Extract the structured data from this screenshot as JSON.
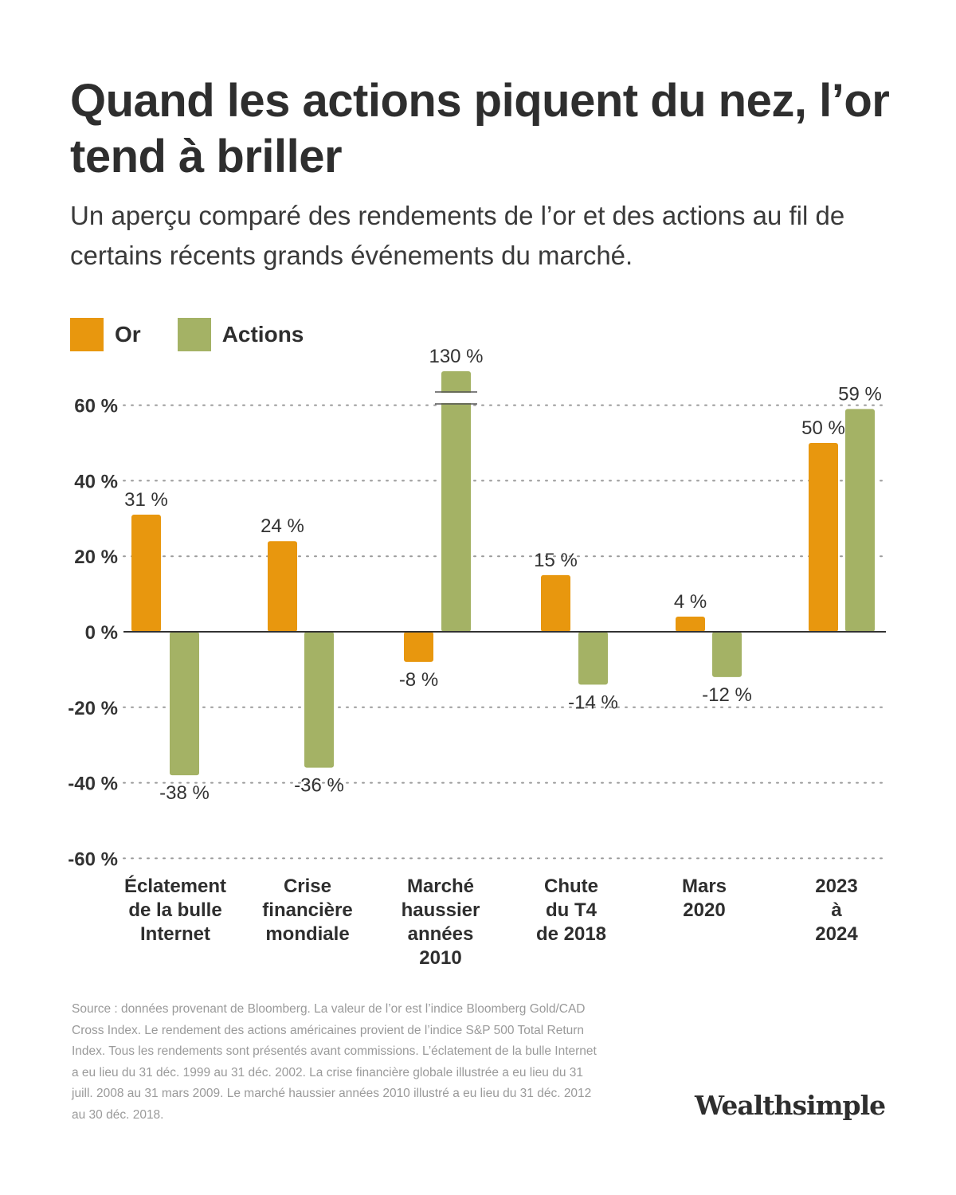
{
  "title": "Quand les actions piquent du nez, l’or tend à briller",
  "subtitle": "Un aperçu comparé des rendements de l’or et des actions au fil de certains récents grands événements du marché.",
  "legend": [
    {
      "label": "Or",
      "color": "#E8970E"
    },
    {
      "label": "Actions",
      "color": "#A4B265"
    }
  ],
  "chart_data": {
    "type": "bar",
    "categories": [
      "Éclatement de la bulle Internet",
      "Crise financière mondiale",
      "Marché haussier années 2010",
      "Chute du T4 de 2018",
      "Mars 2020",
      "2023 à 2024"
    ],
    "category_lines": [
      [
        "Éclatement",
        "de la bulle",
        "Internet"
      ],
      [
        "Crise",
        "financière",
        "mondiale"
      ],
      [
        "Marché",
        "haussier",
        "années",
        "2010"
      ],
      [
        "Chute",
        "du T4",
        "de 2018"
      ],
      [
        "Mars",
        "2020"
      ],
      [
        "2023",
        "à",
        "2024"
      ]
    ],
    "series": [
      {
        "name": "Or",
        "color": "#E8970E",
        "values": [
          31,
          24,
          -8,
          15,
          4,
          50
        ],
        "labels": [
          "31 %",
          "24 %",
          "-8 %",
          "15 %",
          "4 %",
          "50 %"
        ]
      },
      {
        "name": "Actions",
        "color": "#A4B265",
        "values": [
          -38,
          -36,
          130,
          -14,
          -12,
          59
        ],
        "labels": [
          "-38 %",
          "-36 %",
          "130 %",
          "-14 %",
          "-12 %",
          "59 %"
        ]
      }
    ],
    "ylim": [
      -60,
      60
    ],
    "yticks": [
      60,
      40,
      20,
      0,
      -20,
      -40,
      -60
    ],
    "ytick_labels": [
      "60 %",
      "40 %",
      "20 %",
      "0 %",
      "-20 %",
      "-40 %",
      "-60 %"
    ],
    "grid": "dotted horizontal",
    "axis_break": "Marché haussier années 2010 — Actions",
    "legend_position": "top-left"
  },
  "footnote": "Source : données provenant de Bloomberg. La valeur de l’or est l’indice Bloomberg Gold/CAD Cross Index. Le rendement des actions américaines provient de l’indice S&P 500 Total Return Index. Tous les rendements sont présentés avant commissions. L’éclatement de la bulle Internet a eu lieu du 31 déc. 1999 au 31 déc. 2002. La crise financière globale illustrée a eu lieu du 31 juill. 2008 au 31 mars 2009. Le marché haussier années 2010 illustré a eu lieu du 31 déc. 2012 au 30 déc. 2018.",
  "brand": "Wealthsimple",
  "colors": {
    "gold": "#E8970E",
    "stocks": "#A4B265",
    "text": "#333333",
    "grid": "#9a9a9a",
    "footnote": "#9a9a9a"
  }
}
